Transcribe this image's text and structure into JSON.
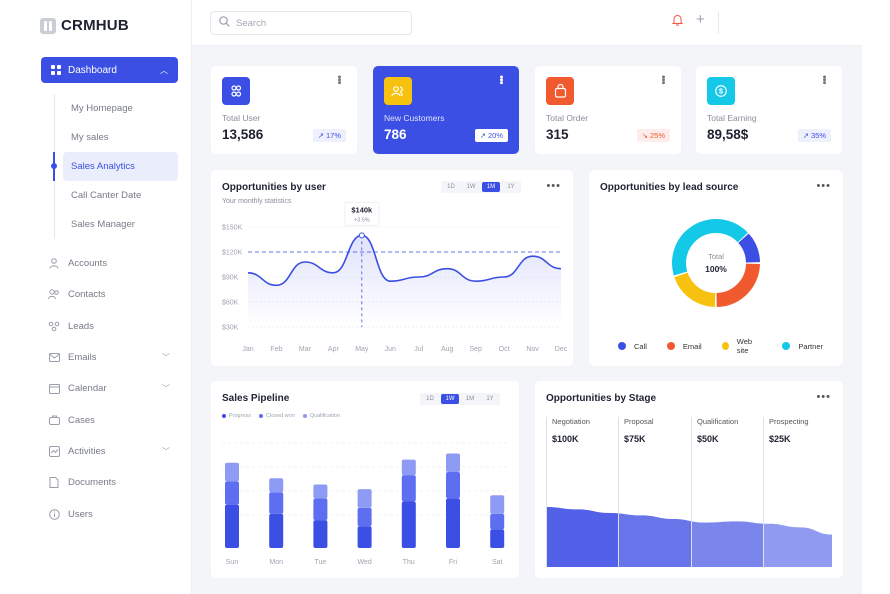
{
  "app": {
    "logo": "CRMHUB"
  },
  "sidebar": {
    "dashboard_label": "Dashboard",
    "sub_items": [
      {
        "label": "My Homepage"
      },
      {
        "label": "My sales"
      },
      {
        "label": "Sales Analytics",
        "active": true
      },
      {
        "label": "Call Canter Date"
      },
      {
        "label": "Sales Manager"
      }
    ],
    "items": [
      {
        "label": "Accounts",
        "icon": "user-icon",
        "expandable": false
      },
      {
        "label": "Contacts",
        "icon": "contacts-icon",
        "expandable": false
      },
      {
        "label": "Leads",
        "icon": "leads-icon",
        "expandable": false
      },
      {
        "label": "Emails",
        "icon": "mail-icon",
        "expandable": true
      },
      {
        "label": "Calendar",
        "icon": "calendar-icon",
        "expandable": true
      },
      {
        "label": "Cases",
        "icon": "cases-icon",
        "expandable": false
      },
      {
        "label": "Activities",
        "icon": "activity-icon",
        "expandable": true
      },
      {
        "label": "Documents",
        "icon": "document-icon",
        "expandable": false
      },
      {
        "label": "Users",
        "icon": "info-icon",
        "expandable": false
      }
    ]
  },
  "topbar": {
    "search_placeholder": "Search"
  },
  "stats": [
    {
      "label": "Total User",
      "value": "13,586",
      "change": "17%",
      "trend": "up",
      "icon_color": "#3b4fe4"
    },
    {
      "label": "New Customers",
      "value": "786",
      "change": "20%",
      "trend": "up",
      "icon_color": "#f6c20f"
    },
    {
      "label": "Total Order",
      "value": "315",
      "change": "25%",
      "trend": "down",
      "icon_color": "#f05a2e"
    },
    {
      "label": "Total Earning",
      "value": "89,58$",
      "change": "35%",
      "trend": "up",
      "icon_color": "#14c8e8"
    }
  ],
  "opp_user": {
    "title": "Opportunities by user",
    "subtitle": "Your monthly statistics",
    "periods": [
      "1D",
      "1W",
      "1M",
      "1Y"
    ],
    "active_period": "1M",
    "tooltip_value": "$140k",
    "tooltip_change": "+3.5%"
  },
  "opp_lead": {
    "title": "Opportunities by lead source",
    "center_label": "Total",
    "center_value": "100%"
  },
  "pipeline": {
    "title": "Sales Pipeline",
    "periods": [
      "1D",
      "1W",
      "1M",
      "1Y"
    ],
    "active_period": "1W"
  },
  "stage": {
    "title": "Opportunities by Stage"
  },
  "chart_data": [
    {
      "type": "line",
      "title": "Opportunities by user",
      "categories": [
        "Jan",
        "Feb",
        "Mar",
        "Apr",
        "May",
        "Jun",
        "Jul",
        "Aug",
        "Sep",
        "Oct",
        "Nov",
        "Dec"
      ],
      "y_ticks": [
        "$150K",
        "$120K",
        "$90K",
        "$60K",
        "$30K"
      ],
      "ylim": [
        30,
        150
      ],
      "series": [
        {
          "values": [
            95,
            80,
            108,
            95,
            140,
            85,
            90,
            100,
            85,
            90,
            115,
            100
          ]
        }
      ],
      "reference_line": 120,
      "highlight": {
        "category": "May",
        "value": 140
      },
      "color": "#3b4fe4"
    },
    {
      "type": "pie",
      "title": "Opportunities by lead source",
      "slices": [
        {
          "name": "Call",
          "value": 12,
          "color": "#3b4fe4"
        },
        {
          "name": "Email",
          "value": 25,
          "color": "#f05a2e"
        },
        {
          "name": "Web site",
          "value": 20,
          "color": "#f6c20f"
        },
        {
          "name": "Partner",
          "value": 43,
          "color": "#14c8e8"
        }
      ]
    },
    {
      "type": "bar",
      "title": "Sales Pipeline",
      "categories": [
        "Sun",
        "Mon",
        "Tue",
        "Wed",
        "Thu",
        "Fri",
        "Sat"
      ],
      "series": [
        {
          "name": "Progress",
          "color": "#3b4fe4",
          "values": [
            28,
            22,
            18,
            14,
            30,
            32,
            12
          ]
        },
        {
          "name": "Closed won",
          "color": "#5d6ff0",
          "values": [
            15,
            14,
            14,
            12,
            17,
            17,
            10
          ]
        },
        {
          "name": "Qualification",
          "color": "#8e9bf4",
          "values": [
            12,
            9,
            9,
            12,
            10,
            12,
            12
          ]
        }
      ]
    },
    {
      "type": "area",
      "title": "Opportunities by Stage",
      "stages": [
        {
          "name": "Negotiation",
          "value": "$100K"
        },
        {
          "name": "Proposal",
          "value": "$75K"
        },
        {
          "name": "Qualification",
          "value": "$50K"
        },
        {
          "name": "Prospecting",
          "value": "$25K"
        }
      ],
      "heights": [
        100,
        96,
        90,
        86,
        80,
        74,
        76,
        72,
        66,
        54
      ],
      "color": "#5261e8"
    }
  ]
}
